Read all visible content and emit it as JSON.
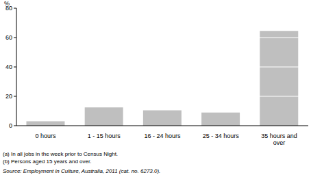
{
  "chart_data": {
    "type": "bar",
    "y_label": "%",
    "categories": [
      "0 hours",
      "1 - 15 hours",
      "16 - 24 hours",
      "25 - 34 hours",
      "35 hours and over"
    ],
    "values": [
      3,
      12.5,
      10.5,
      9,
      64.5
    ],
    "color": "#bfbfbf",
    "ylim": [
      0,
      80
    ],
    "yticks": [
      0,
      20,
      40,
      60,
      80
    ],
    "grid": true,
    "annotations": [
      "(a) In all jobs in the week prior to Census Night.",
      "(b) Persons aged 15 years and over."
    ],
    "source": "Source: Employment in Culture, Australia, 2011 (cat. no. 6273.0)."
  }
}
